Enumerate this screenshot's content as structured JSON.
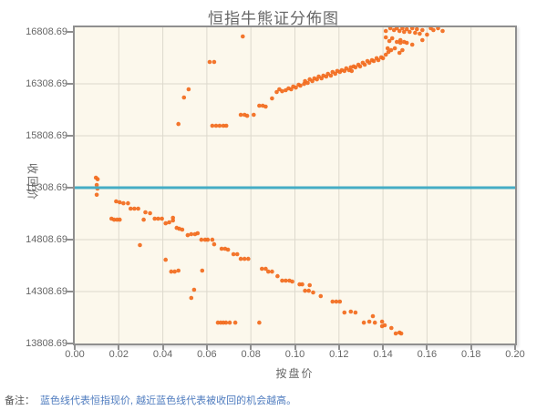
{
  "title": "恒指牛熊证分佈图",
  "note": {
    "prefix": "备注：",
    "body": "蓝色线代表恒指现价, 越近蓝色线代表被收回的机会越高。"
  },
  "colors": {
    "scatter": "#f26a1c",
    "price_line": "#45adc5",
    "plot_bg": "#fcf8ec",
    "grid": "#ddd9cd",
    "axis_border": "#8f8f8f",
    "tick": "#8f8f8f",
    "label": "#666666",
    "title": "#666666",
    "note_prefix": "#555555",
    "note_body": "#4f7cbf"
  },
  "chart_data": {
    "type": "scatter",
    "title": "恒指牛熊证分佈图",
    "xlabel": "按盘价",
    "ylabel": "收回价",
    "xlim": [
      0,
      0.2
    ],
    "ylim": [
      13808.69,
      16852.5
    ],
    "x_ticks": [
      "0.00",
      "0.02",
      "0.04",
      "0.06",
      "0.08",
      "0.10",
      "0.12",
      "0.14",
      "0.16",
      "0.18",
      "0.20"
    ],
    "y_ticks": [
      "16808.69",
      "16308.69",
      "15808.69",
      "15308.69",
      "14808.69",
      "14308.69",
      "13808.69"
    ],
    "grid": true,
    "legend": "none",
    "price_line_value": 15308.69,
    "series": [
      {
        "name": "bear-certificates",
        "points": [
          [
            0.0096,
            15405
          ],
          [
            0.0104,
            15390
          ],
          [
            0.01,
            15335
          ],
          [
            0.0103,
            15300
          ],
          [
            0.01,
            15240
          ],
          [
            0.0188,
            15177
          ],
          [
            0.0204,
            15168
          ],
          [
            0.0221,
            15159
          ],
          [
            0.0242,
            15159
          ],
          [
            0.0254,
            15107
          ],
          [
            0.0271,
            15107
          ],
          [
            0.0288,
            15107
          ],
          [
            0.0167,
            15010
          ],
          [
            0.0179,
            15001
          ],
          [
            0.0192,
            15001
          ],
          [
            0.0204,
            15001
          ],
          [
            0.0313,
            15001
          ],
          [
            0.0321,
            15072
          ],
          [
            0.0342,
            15063
          ],
          [
            0.0363,
            15010
          ],
          [
            0.0379,
            15010
          ],
          [
            0.0396,
            15010
          ],
          [
            0.0413,
            14966
          ],
          [
            0.0429,
            14975
          ],
          [
            0.0446,
            14993
          ],
          [
            0.0446,
            15019
          ],
          [
            0.0463,
            14922
          ],
          [
            0.0475,
            14913
          ],
          [
            0.0488,
            14905
          ],
          [
            0.0513,
            14852
          ],
          [
            0.0529,
            14861
          ],
          [
            0.0546,
            14861
          ],
          [
            0.0558,
            14870
          ],
          [
            0.0296,
            14756
          ],
          [
            0.0575,
            14808
          ],
          [
            0.0592,
            14808
          ],
          [
            0.0604,
            14808
          ],
          [
            0.0625,
            14808
          ],
          [
            0.0633,
            14764
          ],
          [
            0.0667,
            14721
          ],
          [
            0.0683,
            14721
          ],
          [
            0.0696,
            14712
          ],
          [
            0.0721,
            14668
          ],
          [
            0.0738,
            14668
          ],
          [
            0.0754,
            14624
          ],
          [
            0.0771,
            14624
          ],
          [
            0.0788,
            14624
          ],
          [
            0.0413,
            14615
          ],
          [
            0.0438,
            14501
          ],
          [
            0.0454,
            14501
          ],
          [
            0.0471,
            14510
          ],
          [
            0.0579,
            14510
          ],
          [
            0.0542,
            14326
          ],
          [
            0.0529,
            14247
          ],
          [
            0.085,
            14528
          ],
          [
            0.0867,
            14528
          ],
          [
            0.0879,
            14501
          ],
          [
            0.0896,
            14501
          ],
          [
            0.0921,
            14457
          ],
          [
            0.0942,
            14414
          ],
          [
            0.0958,
            14414
          ],
          [
            0.0975,
            14414
          ],
          [
            0.0988,
            14405
          ],
          [
            0.1021,
            14378
          ],
          [
            0.1033,
            14378
          ],
          [
            0.1067,
            14370
          ],
          [
            0.1046,
            14317
          ],
          [
            0.1063,
            14317
          ],
          [
            0.1083,
            14300
          ],
          [
            0.1117,
            14265
          ],
          [
            0.1171,
            14212
          ],
          [
            0.1188,
            14212
          ],
          [
            0.1204,
            14212
          ],
          [
            0.1225,
            14107
          ],
          [
            0.1254,
            14116
          ],
          [
            0.1275,
            14107
          ],
          [
            0.1313,
            14010
          ],
          [
            0.1338,
            14019
          ],
          [
            0.1354,
            14072
          ],
          [
            0.1363,
            14010
          ],
          [
            0.1396,
            14019
          ],
          [
            0.1396,
            13975
          ],
          [
            0.1408,
            13984
          ],
          [
            0.1438,
            13958
          ],
          [
            0.1458,
            13905
          ],
          [
            0.1475,
            13914
          ],
          [
            0.1483,
            13905
          ],
          [
            0.065,
            14010
          ],
          [
            0.0663,
            14010
          ],
          [
            0.0675,
            14010
          ],
          [
            0.0687,
            14010
          ],
          [
            0.0704,
            14010
          ],
          [
            0.0729,
            14010
          ],
          [
            0.0838,
            14010
          ]
        ]
      },
      {
        "name": "bull-certificates",
        "points": [
          [
            0.0471,
            15922
          ],
          [
            0.0496,
            16177
          ],
          [
            0.0517,
            16256
          ],
          [
            0.0613,
            16519
          ],
          [
            0.0633,
            16519
          ],
          [
            0.0763,
            16765
          ],
          [
            0.0625,
            15905
          ],
          [
            0.0642,
            15905
          ],
          [
            0.0658,
            15905
          ],
          [
            0.0675,
            15905
          ],
          [
            0.0688,
            15905
          ],
          [
            0.0754,
            16010
          ],
          [
            0.0771,
            16010
          ],
          [
            0.0783,
            16001
          ],
          [
            0.0813,
            16010
          ],
          [
            0.0838,
            16098
          ],
          [
            0.0854,
            16098
          ],
          [
            0.0867,
            16089
          ],
          [
            0.0896,
            16168
          ],
          [
            0.0917,
            16230
          ],
          [
            0.0929,
            16256
          ],
          [
            0.0942,
            16238
          ],
          [
            0.0958,
            16247
          ],
          [
            0.0971,
            16265
          ],
          [
            0.0983,
            16256
          ],
          [
            0.0992,
            16282
          ],
          [
            0.1004,
            16273
          ],
          [
            0.1017,
            16300
          ],
          [
            0.1025,
            16291
          ],
          [
            0.1042,
            16308
          ],
          [
            0.1046,
            16335
          ],
          [
            0.1058,
            16317
          ],
          [
            0.1067,
            16352
          ],
          [
            0.1079,
            16335
          ],
          [
            0.1088,
            16361
          ],
          [
            0.11,
            16352
          ],
          [
            0.1108,
            16379
          ],
          [
            0.1121,
            16361
          ],
          [
            0.1129,
            16388
          ],
          [
            0.1142,
            16379
          ],
          [
            0.115,
            16405
          ],
          [
            0.1163,
            16388
          ],
          [
            0.1171,
            16423
          ],
          [
            0.1183,
            16405
          ],
          [
            0.1192,
            16432
          ],
          [
            0.1204,
            16423
          ],
          [
            0.1213,
            16440
          ],
          [
            0.1225,
            16432
          ],
          [
            0.1233,
            16458
          ],
          [
            0.1246,
            16440
          ],
          [
            0.1254,
            16467
          ],
          [
            0.1258,
            16432
          ],
          [
            0.1267,
            16476
          ],
          [
            0.1275,
            16467
          ],
          [
            0.1288,
            16493
          ],
          [
            0.1296,
            16476
          ],
          [
            0.1308,
            16511
          ],
          [
            0.1317,
            16493
          ],
          [
            0.1329,
            16528
          ],
          [
            0.1338,
            16511
          ],
          [
            0.135,
            16537
          ],
          [
            0.1358,
            16528
          ],
          [
            0.1371,
            16555
          ],
          [
            0.1379,
            16537
          ],
          [
            0.1392,
            16564
          ],
          [
            0.14,
            16555
          ],
          [
            0.1413,
            16817
          ],
          [
            0.1433,
            16844
          ],
          [
            0.145,
            16826
          ],
          [
            0.1463,
            16844
          ],
          [
            0.1475,
            16817
          ],
          [
            0.1488,
            16844
          ],
          [
            0.1496,
            16809
          ],
          [
            0.1508,
            16835
          ],
          [
            0.1521,
            16809
          ],
          [
            0.1533,
            16844
          ],
          [
            0.1546,
            16800
          ],
          [
            0.1554,
            16835
          ],
          [
            0.1567,
            16791
          ],
          [
            0.1579,
            16826
          ],
          [
            0.1617,
            16844
          ],
          [
            0.1629,
            16826
          ],
          [
            0.165,
            16844
          ],
          [
            0.1671,
            16817
          ],
          [
            0.1413,
            16756
          ],
          [
            0.1429,
            16721
          ],
          [
            0.1442,
            16747
          ],
          [
            0.1463,
            16712
          ],
          [
            0.1479,
            16730
          ],
          [
            0.1496,
            16712
          ],
          [
            0.1421,
            16651
          ],
          [
            0.1437,
            16633
          ],
          [
            0.1454,
            16651
          ],
          [
            0.1413,
            16589
          ],
          [
            0.1425,
            16616
          ],
          [
            0.1475,
            16607
          ],
          [
            0.1508,
            16703
          ],
          [
            0.1533,
            16686
          ],
          [
            0.1579,
            16730
          ],
          [
            0.16,
            16782
          ],
          [
            0.1479,
            16703
          ],
          [
            0.1488,
            16633
          ]
        ]
      }
    ]
  }
}
